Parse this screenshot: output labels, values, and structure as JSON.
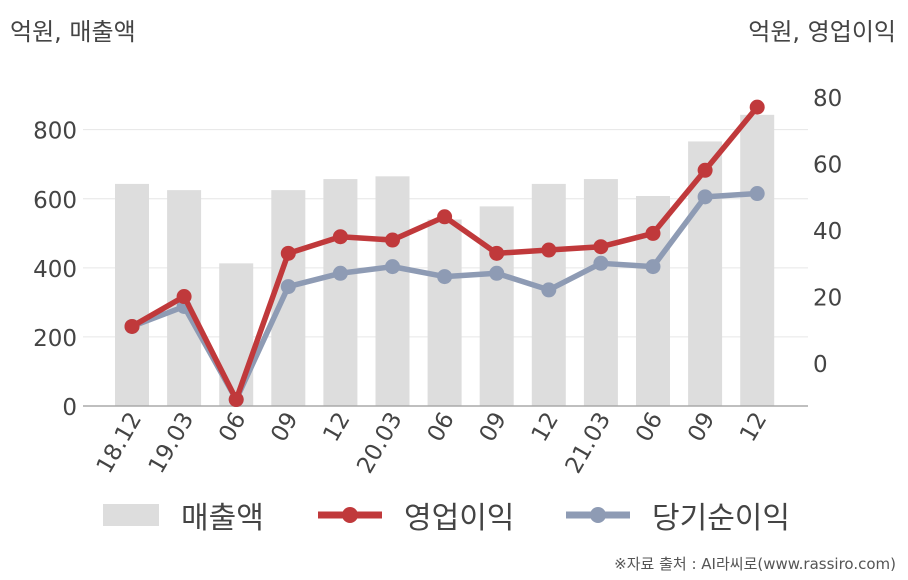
{
  "unit_left": "억원, 매출액",
  "unit_right": "억원, 영업이익",
  "source": "※자료 출처 : AI라씨로(www.rassiro.com)",
  "legend": {
    "revenue": "매출액",
    "operating_profit": "영업이익",
    "net_profit": "당기순이익"
  },
  "colors": {
    "revenue": "#dddddd",
    "operating_profit": "#c0393b",
    "net_profit": "#8e9bb4",
    "grid": "#e6e6e6",
    "axis": "#aaaaaa"
  },
  "chart_data": {
    "type": "bar+line",
    "categories": [
      "18.12",
      "19.03",
      "06",
      "09",
      "12",
      "20.03",
      "06",
      "09",
      "12",
      "21.03",
      "06",
      "09",
      "12"
    ],
    "series": [
      {
        "name": "매출액",
        "type": "bar",
        "axis": "left",
        "values": [
          643,
          625,
          413,
          625,
          657,
          665,
          540,
          578,
          643,
          657,
          608,
          766,
          843
        ]
      },
      {
        "name": "영업이익",
        "type": "line",
        "axis": "right",
        "values": [
          11,
          20,
          -11,
          33,
          38,
          37,
          44,
          33,
          34,
          35,
          39,
          58,
          77
        ]
      },
      {
        "name": "당기순이익",
        "type": "line",
        "axis": "right",
        "values": [
          11,
          17,
          -11,
          23,
          27,
          29,
          26,
          27,
          22,
          30,
          29,
          50,
          51
        ]
      }
    ],
    "y_left": {
      "ticks": [
        0,
        200,
        400,
        600,
        800
      ],
      "range": [
        0,
        900
      ]
    },
    "y_right": {
      "ticks": [
        0,
        20,
        40,
        60,
        80
      ],
      "range": [
        -13.3,
        82.1
      ]
    },
    "grid": true,
    "legend_position": "bottom"
  }
}
